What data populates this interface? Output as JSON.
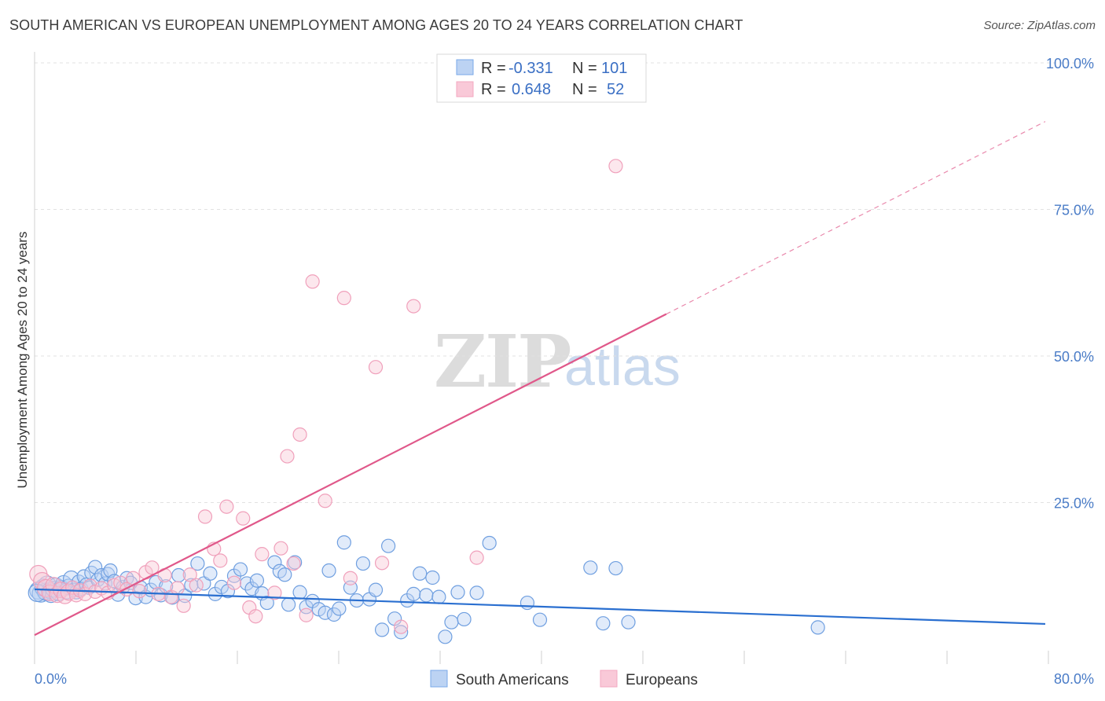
{
  "header": {
    "title": "SOUTH AMERICAN VS EUROPEAN UNEMPLOYMENT AMONG AGES 20 TO 24 YEARS CORRELATION CHART",
    "source": "Source: ZipAtlas.com"
  },
  "watermark": {
    "zip": "ZIP",
    "atlas": "atlas"
  },
  "legend": {
    "rows": [
      {
        "r_label": "R = ",
        "r_value": "-0.331",
        "n_label": "N = ",
        "n_value": "101"
      },
      {
        "r_label": "R = ",
        "r_value": "0.648",
        "n_label": "N = ",
        "n_value": "52"
      }
    ]
  },
  "chart_data": {
    "type": "scatter",
    "title": "SOUTH AMERICAN VS EUROPEAN UNEMPLOYMENT AMONG AGES 20 TO 24 YEARS CORRELATION CHART",
    "xlabel": "",
    "ylabel": "Unemployment Among Ages 20 to 24 years",
    "xlim": [
      0,
      80
    ],
    "ylim": [
      0,
      100
    ],
    "x_tick_labels": [
      "0.0%",
      "80.0%"
    ],
    "y_ticks": [
      25,
      50,
      75,
      100
    ],
    "y_tick_labels": [
      "25.0%",
      "50.0%",
      "75.0%",
      "100.0%"
    ],
    "series": [
      {
        "name": "South Americans",
        "color": "#7aaae8",
        "line_color": "#2a6fd0",
        "r": -0.331,
        "n": 101,
        "trend": {
          "x0": 0,
          "y0": 10.2,
          "x1": 80,
          "y1": 4.3
        },
        "points": [
          [
            0.3,
            10
          ],
          [
            0.5,
            9.5
          ],
          [
            0.7,
            10.5
          ],
          [
            0.9,
            9.8
          ],
          [
            1.0,
            11
          ],
          [
            1.2,
            10
          ],
          [
            1.3,
            9.3
          ],
          [
            1.5,
            10.2
          ],
          [
            1.7,
            10.8
          ],
          [
            1.9,
            9.6
          ],
          [
            2.1,
            10.4
          ],
          [
            2.3,
            11.2
          ],
          [
            2.5,
            9.9
          ],
          [
            2.7,
            10.6
          ],
          [
            2.9,
            12
          ],
          [
            3.1,
            10.1
          ],
          [
            3.3,
            9.7
          ],
          [
            3.5,
            11.5
          ],
          [
            3.7,
            10.3
          ],
          [
            3.9,
            12.4
          ],
          [
            4.1,
            11
          ],
          [
            4.3,
            10.5
          ],
          [
            4.5,
            13
          ],
          [
            4.8,
            14
          ],
          [
            5.0,
            11.8
          ],
          [
            5.3,
            12.6
          ],
          [
            5.6,
            11.2
          ],
          [
            5.8,
            12.8
          ],
          [
            6.0,
            13.4
          ],
          [
            6.3,
            11.6
          ],
          [
            6.6,
            9.3
          ],
          [
            7.0,
            10.6
          ],
          [
            7.3,
            12.1
          ],
          [
            7.6,
            11.3
          ],
          [
            8.0,
            8.7
          ],
          [
            8.4,
            10.5
          ],
          [
            8.8,
            8.9
          ],
          [
            9.2,
            10.1
          ],
          [
            9.6,
            11.4
          ],
          [
            10.0,
            9.2
          ],
          [
            10.4,
            10.7
          ],
          [
            10.9,
            8.8
          ],
          [
            11.4,
            12.6
          ],
          [
            11.9,
            9.1
          ],
          [
            12.4,
            10.9
          ],
          [
            12.9,
            14.6
          ],
          [
            13.4,
            11.2
          ],
          [
            13.9,
            12.9
          ],
          [
            14.3,
            9.4
          ],
          [
            14.8,
            10.6
          ],
          [
            15.3,
            9.9
          ],
          [
            15.8,
            12.5
          ],
          [
            16.3,
            13.6
          ],
          [
            16.8,
            11.2
          ],
          [
            17.2,
            10.3
          ],
          [
            17.6,
            11.7
          ],
          [
            18.0,
            9.5
          ],
          [
            18.4,
            7.9
          ],
          [
            19.0,
            14.8
          ],
          [
            19.4,
            13.3
          ],
          [
            19.8,
            12.7
          ],
          [
            20.1,
            7.6
          ],
          [
            20.6,
            14.8
          ],
          [
            21.0,
            9.7
          ],
          [
            21.5,
            7.2
          ],
          [
            22.0,
            8.2
          ],
          [
            22.5,
            6.8
          ],
          [
            23.0,
            6.2
          ],
          [
            23.3,
            13.4
          ],
          [
            23.7,
            5.9
          ],
          [
            24.1,
            6.9
          ],
          [
            24.5,
            18.2
          ],
          [
            25.0,
            10.5
          ],
          [
            25.5,
            8.3
          ],
          [
            26.0,
            14.6
          ],
          [
            26.5,
            8.5
          ],
          [
            27.0,
            10.1
          ],
          [
            27.5,
            3.3
          ],
          [
            28.0,
            17.6
          ],
          [
            28.5,
            5.2
          ],
          [
            29.0,
            2.9
          ],
          [
            29.5,
            8.3
          ],
          [
            30.0,
            9.4
          ],
          [
            30.5,
            12.9
          ],
          [
            31.0,
            9.2
          ],
          [
            31.5,
            12.2
          ],
          [
            32.0,
            8.9
          ],
          [
            32.5,
            2.1
          ],
          [
            33.0,
            4.6
          ],
          [
            33.5,
            9.7
          ],
          [
            34.0,
            5.1
          ],
          [
            35.0,
            9.6
          ],
          [
            36.0,
            18.1
          ],
          [
            39.0,
            7.9
          ],
          [
            40.0,
            5.0
          ],
          [
            44.0,
            13.9
          ],
          [
            45.0,
            4.4
          ],
          [
            46.0,
            13.8
          ],
          [
            47.0,
            4.6
          ],
          [
            62.0,
            3.7
          ],
          [
            0.2,
            9.6
          ]
        ]
      },
      {
        "name": "Europeans",
        "color": "#f3a8c0",
        "line_color": "#e0588a",
        "r": 0.648,
        "n": 52,
        "trend": {
          "x0": 0,
          "y0": 2.4,
          "x1": 80,
          "y1": 90
        },
        "trend_solid_until_x": 50,
        "points": [
          [
            0.3,
            12.8
          ],
          [
            0.6,
            11.6
          ],
          [
            0.9,
            10.4
          ],
          [
            1.2,
            9.6
          ],
          [
            1.5,
            10.9
          ],
          [
            1.8,
            9.3
          ],
          [
            2.1,
            10.1
          ],
          [
            2.4,
            9.1
          ],
          [
            2.7,
            9.7
          ],
          [
            3.0,
            10.5
          ],
          [
            3.3,
            9.2
          ],
          [
            3.6,
            10.0
          ],
          [
            4.0,
            9.4
          ],
          [
            4.4,
            10.8
          ],
          [
            4.8,
            9.8
          ],
          [
            5.3,
            10.4
          ],
          [
            5.8,
            9.6
          ],
          [
            6.3,
            10.9
          ],
          [
            6.8,
            11.3
          ],
          [
            7.3,
            10.2
          ],
          [
            7.8,
            12.1
          ],
          [
            8.3,
            9.9
          ],
          [
            8.8,
            13.1
          ],
          [
            9.3,
            13.9
          ],
          [
            9.8,
            9.4
          ],
          [
            10.3,
            12.6
          ],
          [
            10.8,
            8.9
          ],
          [
            11.3,
            10.4
          ],
          [
            11.8,
            7.4
          ],
          [
            12.3,
            12.7
          ],
          [
            12.8,
            10.9
          ],
          [
            13.5,
            22.6
          ],
          [
            14.2,
            17.1
          ],
          [
            14.7,
            15.1
          ],
          [
            15.2,
            24.3
          ],
          [
            15.8,
            11.3
          ],
          [
            16.5,
            22.3
          ],
          [
            17.0,
            7.1
          ],
          [
            17.5,
            5.6
          ],
          [
            18.0,
            16.2
          ],
          [
            19.0,
            9.6
          ],
          [
            19.5,
            17.2
          ],
          [
            20.0,
            32.9
          ],
          [
            20.5,
            14.6
          ],
          [
            21.0,
            36.6
          ],
          [
            21.5,
            5.8
          ],
          [
            22.0,
            62.7
          ],
          [
            23.0,
            25.3
          ],
          [
            24.5,
            59.9
          ],
          [
            25.0,
            12.1
          ],
          [
            27.0,
            48.1
          ],
          [
            30.0,
            58.5
          ]
        ],
        "extra_points": [
          [
            27.5,
            14.7
          ],
          [
            29.0,
            3.8
          ],
          [
            35.0,
            15.6
          ],
          [
            46.0,
            82.4
          ]
        ]
      }
    ],
    "legend_position": "top-center"
  },
  "bottom_legend": {
    "items": [
      {
        "label": "South Americans",
        "color": "#7aaae8"
      },
      {
        "label": "Europeans",
        "color": "#f3a8c0"
      }
    ]
  },
  "colors": {
    "blue_fill": "#bcd3f3",
    "blue_stroke": "#7aaae8",
    "pink_fill": "#f9c9d8",
    "pink_stroke": "#f3a8c0",
    "grid": "#e3e3e3",
    "axis_text": "#4a7cc7"
  }
}
